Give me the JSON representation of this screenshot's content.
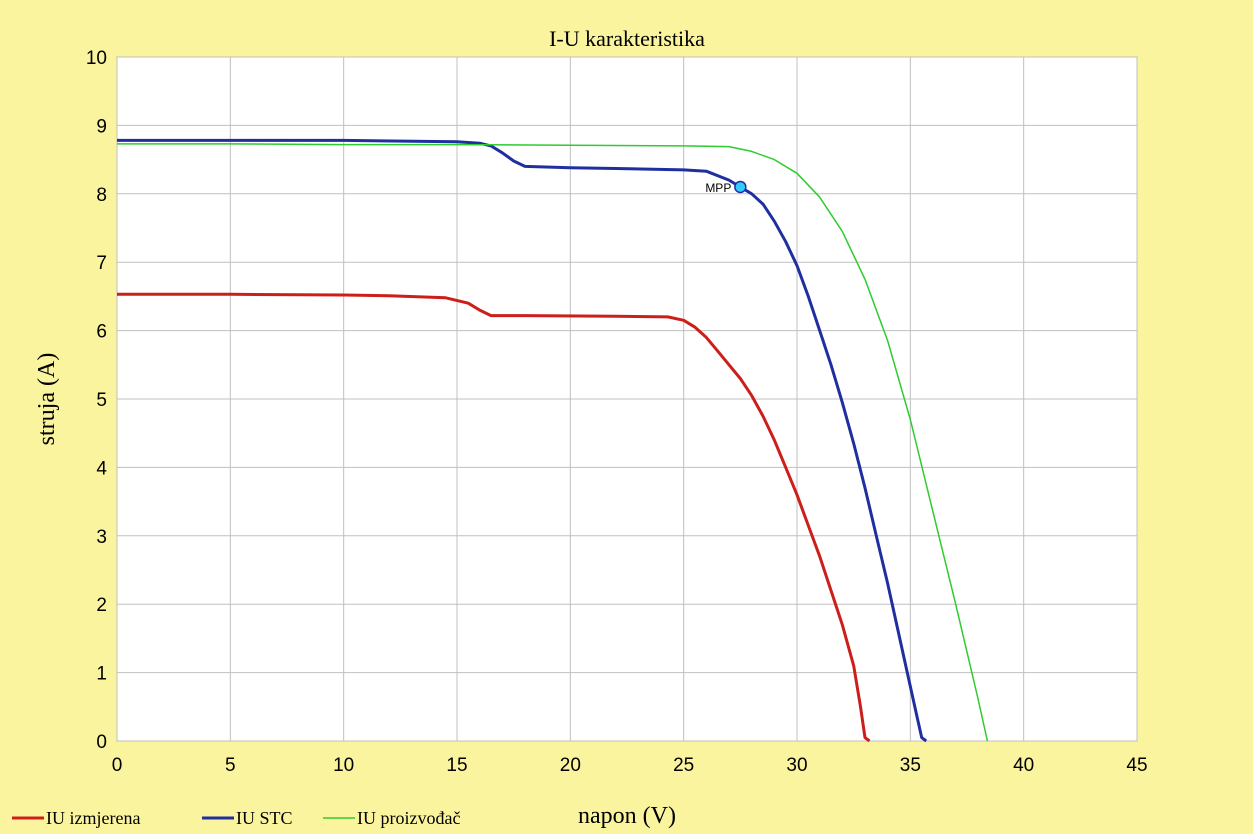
{
  "colors": {
    "background": "#fbf49f",
    "plot_background": "#ffffff",
    "grid": "#c0c0c0"
  },
  "chart_data": {
    "type": "line",
    "title": "I-U karakteristika",
    "xlabel": "napon (V)",
    "ylabel": "struja (A)",
    "xlim": [
      0,
      45
    ],
    "ylim": [
      0,
      10
    ],
    "xticks": [
      0,
      5,
      10,
      15,
      20,
      25,
      30,
      35,
      40,
      45
    ],
    "yticks": [
      0,
      1,
      2,
      3,
      4,
      5,
      6,
      7,
      8,
      9,
      10
    ],
    "grid": true,
    "legend_position": "bottom-left",
    "series": [
      {
        "name": "IU izmjerena",
        "color": "#cc1f1a",
        "points": [
          [
            0,
            6.53
          ],
          [
            5,
            6.53
          ],
          [
            10,
            6.52
          ],
          [
            12,
            6.51
          ],
          [
            14.5,
            6.48
          ],
          [
            15.5,
            6.4
          ],
          [
            16,
            6.3
          ],
          [
            16.5,
            6.22
          ],
          [
            18,
            6.22
          ],
          [
            22,
            6.21
          ],
          [
            24.3,
            6.2
          ],
          [
            25,
            6.15
          ],
          [
            25.5,
            6.05
          ],
          [
            26,
            5.9
          ],
          [
            26.5,
            5.7
          ],
          [
            27,
            5.5
          ],
          [
            27.5,
            5.3
          ],
          [
            28,
            5.05
          ],
          [
            28.5,
            4.75
          ],
          [
            29,
            4.4
          ],
          [
            29.5,
            4.0
          ],
          [
            30,
            3.6
          ],
          [
            30.5,
            3.15
          ],
          [
            31,
            2.7
          ],
          [
            31.5,
            2.2
          ],
          [
            32,
            1.7
          ],
          [
            32.5,
            1.1
          ],
          [
            32.8,
            0.5
          ],
          [
            33,
            0.05
          ],
          [
            33.2,
            0
          ]
        ]
      },
      {
        "name": "IU STC",
        "color": "#1f2fa0",
        "points": [
          [
            0,
            8.78
          ],
          [
            5,
            8.78
          ],
          [
            10,
            8.78
          ],
          [
            15,
            8.76
          ],
          [
            16,
            8.74
          ],
          [
            16.5,
            8.7
          ],
          [
            17,
            8.6
          ],
          [
            17.5,
            8.48
          ],
          [
            18,
            8.4
          ],
          [
            20,
            8.38
          ],
          [
            22,
            8.37
          ],
          [
            25,
            8.35
          ],
          [
            26,
            8.33
          ],
          [
            27,
            8.2
          ],
          [
            27.5,
            8.1
          ],
          [
            28,
            8.0
          ],
          [
            28.5,
            7.85
          ],
          [
            29,
            7.6
          ],
          [
            29.5,
            7.3
          ],
          [
            30,
            6.95
          ],
          [
            30.5,
            6.5
          ],
          [
            31,
            6.0
          ],
          [
            31.5,
            5.5
          ],
          [
            32,
            4.95
          ],
          [
            32.5,
            4.35
          ],
          [
            33,
            3.7
          ],
          [
            33.5,
            3.0
          ],
          [
            34,
            2.3
          ],
          [
            34.5,
            1.55
          ],
          [
            35,
            0.8
          ],
          [
            35.3,
            0.35
          ],
          [
            35.5,
            0.05
          ],
          [
            35.7,
            0
          ]
        ]
      },
      {
        "name": "IU proizvođač",
        "color": "#2ecc2e",
        "points": [
          [
            0,
            8.73
          ],
          [
            5,
            8.73
          ],
          [
            10,
            8.72
          ],
          [
            15,
            8.72
          ],
          [
            20,
            8.71
          ],
          [
            25,
            8.7
          ],
          [
            27,
            8.69
          ],
          [
            28,
            8.62
          ],
          [
            29,
            8.5
          ],
          [
            30,
            8.3
          ],
          [
            31,
            7.95
          ],
          [
            32,
            7.45
          ],
          [
            33,
            6.75
          ],
          [
            34,
            5.85
          ],
          [
            35,
            4.7
          ],
          [
            36,
            3.35
          ],
          [
            37,
            2.0
          ],
          [
            37.5,
            1.3
          ],
          [
            38,
            0.6
          ],
          [
            38.4,
            0
          ]
        ]
      }
    ],
    "annotations": [
      {
        "text": "MPP",
        "x": 27.5,
        "y": 8.1,
        "marker_color": "#33ccff"
      }
    ]
  }
}
